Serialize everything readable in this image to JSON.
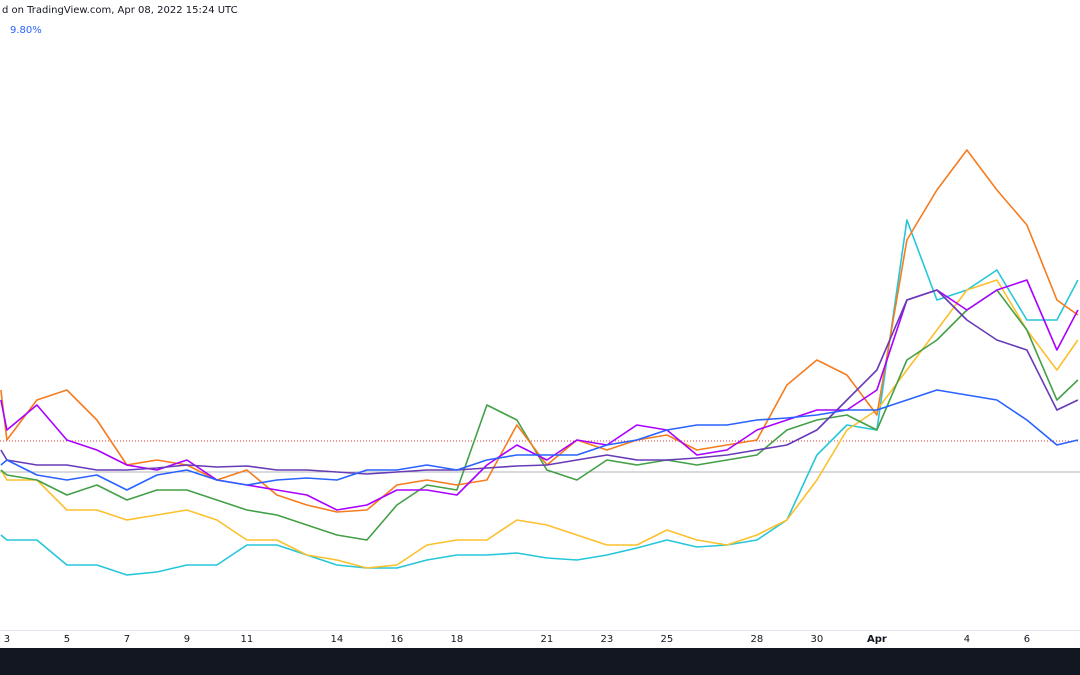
{
  "chart_data": {
    "type": "line",
    "title": "d on TradingView.com, Apr 08, 2022 15:24 UTC",
    "annotation": "9.80%",
    "x": [
      2.8,
      3,
      4,
      5,
      6,
      7,
      8,
      9,
      10,
      11,
      12,
      13,
      14,
      15,
      16,
      17,
      18,
      19,
      20,
      21,
      22,
      23,
      24,
      25,
      26,
      27,
      28,
      29,
      30,
      31,
      32,
      33,
      34,
      35,
      36,
      37,
      38,
      38.7
    ],
    "xlim": [
      2.77,
      38.77
    ],
    "xticks": [
      3,
      5,
      7,
      9,
      11,
      14,
      16,
      18,
      21,
      23,
      25,
      28,
      30,
      {
        "value": 32,
        "label": "Apr"
      },
      {
        "value": 35,
        "label": "4"
      },
      {
        "value": 37,
        "label": "6"
      }
    ],
    "ylim": [
      -15.8,
      45.2
    ],
    "baseline": 0,
    "price_line": 3.1,
    "grid": false,
    "series": [
      {
        "color": "#26c6da",
        "values": [
          -6.3,
          -6.8,
          -6.8,
          -9.3,
          -9.3,
          -10.3,
          -10,
          -9.3,
          -9.3,
          -7.3,
          -7.3,
          -8.3,
          -9.3,
          -9.6,
          -9.6,
          -8.8,
          -8.3,
          -8.3,
          -8.1,
          -8.6,
          -8.8,
          -8.3,
          -7.6,
          -6.8,
          -7.5,
          -7.3,
          -6.8,
          -4.8,
          1.7,
          4.7,
          4.2,
          25.2,
          17.2,
          18.2,
          20.2,
          15.2,
          15.2,
          19.2
        ]
      },
      {
        "color": "#fbc02d",
        "values": [
          0.2,
          -0.8,
          -0.8,
          -3.8,
          -3.8,
          -4.8,
          -4.3,
          -3.8,
          -4.8,
          -6.8,
          -6.8,
          -8.3,
          -8.8,
          -9.6,
          -9.3,
          -7.3,
          -6.8,
          -6.8,
          -4.8,
          -5.3,
          -6.3,
          -7.3,
          -7.3,
          -5.8,
          -6.8,
          -7.3,
          -6.3,
          -4.8,
          -0.8,
          4.2,
          6.2,
          10.2,
          14.2,
          18.2,
          19.2,
          14.2,
          10.2,
          13.2
        ]
      },
      {
        "color": "#43a047",
        "values": [
          0.2,
          -0.3,
          -0.8,
          -2.3,
          -1.3,
          -2.8,
          -1.8,
          -1.8,
          -2.8,
          -3.8,
          -4.3,
          -5.3,
          -6.3,
          -6.8,
          -3.3,
          -1.3,
          -1.8,
          6.7,
          5.2,
          0.2,
          -0.8,
          1.2,
          0.7,
          1.2,
          0.7,
          1.2,
          1.7,
          4.2,
          5.2,
          5.7,
          4.2,
          11.2,
          13.2,
          16.2,
          18.2,
          14.2,
          7.2,
          9.2
        ]
      },
      {
        "color": "#f57c1f",
        "values": [
          8.2,
          3.2,
          7.2,
          8.2,
          5.2,
          0.7,
          1.2,
          0.7,
          -0.8,
          0.2,
          -2.3,
          -3.3,
          -4,
          -3.8,
          -1.3,
          -0.8,
          -1.3,
          -0.8,
          4.7,
          0.7,
          3.2,
          2.2,
          3.2,
          3.7,
          2.2,
          2.7,
          3.2,
          8.7,
          11.2,
          9.7,
          5.7,
          23.2,
          28.2,
          32.2,
          28.2,
          24.7,
          17.2,
          15.7
        ]
      },
      {
        "color": "#aa00ff",
        "values": [
          7.2,
          4.2,
          6.7,
          3.2,
          2.2,
          0.7,
          0.2,
          1.2,
          -0.8,
          -1.3,
          -1.8,
          -2.3,
          -3.8,
          -3.3,
          -1.8,
          -1.8,
          -2.3,
          0.7,
          2.7,
          1.2,
          3.2,
          2.7,
          4.7,
          4.2,
          1.7,
          2.2,
          4.2,
          5.2,
          6.2,
          6.2,
          8.2,
          17.2,
          18.2,
          16.2,
          18.2,
          19.2,
          12.2,
          16.2
        ]
      },
      {
        "color": "#673ab7",
        "values": [
          2.2,
          1.2,
          0.7,
          0.7,
          0.2,
          0.2,
          0.4,
          0.7,
          0.5,
          0.6,
          0.2,
          0.2,
          0,
          -0.2,
          0,
          0.2,
          0.2,
          0.4,
          0.6,
          0.7,
          1.2,
          1.7,
          1.2,
          1.2,
          1.4,
          1.7,
          2.2,
          2.7,
          4.2,
          7.2,
          10.2,
          17.2,
          18.2,
          15.2,
          13.2,
          12.2,
          6.2,
          7.2
        ]
      },
      {
        "color": "#2962ff",
        "values": [
          0.7,
          1.2,
          -0.3,
          -0.8,
          -0.3,
          -1.8,
          -0.3,
          0.2,
          -0.8,
          -1.3,
          -0.8,
          -0.6,
          -0.8,
          0.2,
          0.2,
          0.7,
          0.2,
          1.2,
          1.7,
          1.7,
          1.7,
          2.7,
          3.2,
          4.2,
          4.7,
          4.7,
          5.2,
          5.4,
          5.7,
          6.2,
          6.2,
          7.2,
          8.2,
          7.7,
          7.2,
          5.2,
          2.7,
          3.2
        ]
      }
    ]
  }
}
